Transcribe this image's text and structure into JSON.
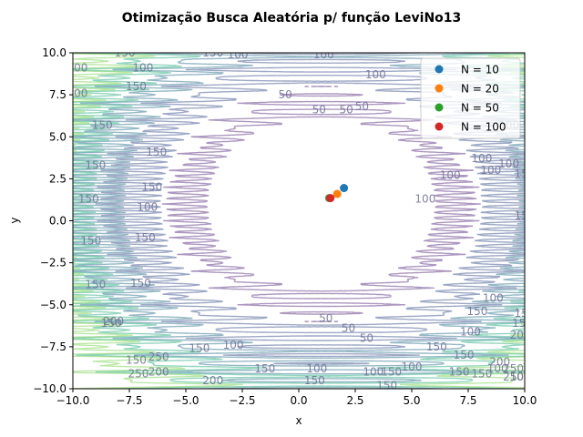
{
  "chart_data": {
    "type": "scatter",
    "title": "Otimização Busca Aleatória p/ função LeviNo13",
    "xlabel": "x",
    "ylabel": "y",
    "xlim": [
      -10,
      10
    ],
    "ylim": [
      -10,
      10
    ],
    "xticks": [
      -10,
      -7.5,
      -5,
      -2.5,
      0,
      2.5,
      5,
      7.5,
      10
    ],
    "yticks": [
      -10,
      -7.5,
      -5,
      -2.5,
      0,
      2.5,
      5,
      7.5,
      10
    ],
    "xtick_labels": [
      "−10.0",
      "−7.5",
      "−5.0",
      "−2.5",
      "0.0",
      "2.5",
      "5.0",
      "7.5",
      "10.0"
    ],
    "ytick_labels": [
      "−10.0",
      "−7.5",
      "−5.0",
      "−2.5",
      "0.0",
      "2.5",
      "5.0",
      "7.5",
      "10.0"
    ],
    "grid": false,
    "legend_position": "top-right",
    "series": [
      {
        "name": "N = 10",
        "color": "#1f77b4",
        "x": [
          2.0
        ],
        "y": [
          1.95
        ]
      },
      {
        "name": "N = 20",
        "color": "#ff7f0e",
        "x": [
          1.7
        ],
        "y": [
          1.6
        ]
      },
      {
        "name": "N = 50",
        "color": "#2ca02c",
        "x": [
          1.35
        ],
        "y": [
          1.35
        ]
      },
      {
        "name": "N = 100",
        "color": "#d62728",
        "x": [
          1.4
        ],
        "y": [
          1.35
        ]
      }
    ],
    "contour": {
      "function": "LeviNo13",
      "levels": [
        50,
        100,
        150,
        200,
        250
      ],
      "colors": [
        "#5a2f7f",
        "#3b528b",
        "#2c728e",
        "#28ae80",
        "#7ad151"
      ],
      "alpha": 0.5,
      "level_labels": [
        {
          "text": "50",
          "x": -0.6,
          "y": 7.5
        },
        {
          "text": "50",
          "x": 0.9,
          "y": 6.6
        },
        {
          "text": "50",
          "x": 2.1,
          "y": 6.6
        },
        {
          "text": "50",
          "x": 2.8,
          "y": 6.8
        },
        {
          "text": "50",
          "x": 2.2,
          "y": -6.4
        },
        {
          "text": "50",
          "x": 1.2,
          "y": -5.8
        },
        {
          "text": "50",
          "x": 3.0,
          "y": -7.0
        },
        {
          "text": "100",
          "x": -2.7,
          "y": 9.9
        },
        {
          "text": "100",
          "x": 1.1,
          "y": 9.9
        },
        {
          "text": "100",
          "x": -6.9,
          "y": 9.1
        },
        {
          "text": "100",
          "x": 3.4,
          "y": 8.7
        },
        {
          "text": "100",
          "x": 8.1,
          "y": 3.7
        },
        {
          "text": "100",
          "x": 8.5,
          "y": 3.0
        },
        {
          "text": "100",
          "x": 9.3,
          "y": 5.7
        },
        {
          "text": "100",
          "x": 9.3,
          "y": 3.4
        },
        {
          "text": "100",
          "x": 6.7,
          "y": 2.7
        },
        {
          "text": "100",
          "x": 5.6,
          "y": 1.3
        },
        {
          "text": "100",
          "x": -6.7,
          "y": 0.8
        },
        {
          "text": "100",
          "x": -2.9,
          "y": -7.4
        },
        {
          "text": "100",
          "x": 0.8,
          "y": -8.8
        },
        {
          "text": "100",
          "x": 3.3,
          "y": -9.0
        },
        {
          "text": "100",
          "x": 8.8,
          "y": -8.8
        },
        {
          "text": "100",
          "x": 9.8,
          "y": -9.3
        },
        {
          "text": "100",
          "x": 5.0,
          "y": -8.7
        },
        {
          "text": "100",
          "x": 7.6,
          "y": -6.6
        },
        {
          "text": "100",
          "x": 8.6,
          "y": -4.6
        },
        {
          "text": "150",
          "x": -7.7,
          "y": 10.0
        },
        {
          "text": "150",
          "x": -3.8,
          "y": 10.0
        },
        {
          "text": "150",
          "x": -7.2,
          "y": 8.0
        },
        {
          "text": "150",
          "x": -8.7,
          "y": 5.7
        },
        {
          "text": "150",
          "x": -9.0,
          "y": 3.3
        },
        {
          "text": "150",
          "x": -9.3,
          "y": 1.3
        },
        {
          "text": "150",
          "x": -6.3,
          "y": 4.1
        },
        {
          "text": "150",
          "x": -6.5,
          "y": 2.0
        },
        {
          "text": "150",
          "x": -6.8,
          "y": -1.0
        },
        {
          "text": "150",
          "x": -7.0,
          "y": -3.7
        },
        {
          "text": "150",
          "x": -9.0,
          "y": -3.8
        },
        {
          "text": "150",
          "x": -9.2,
          "y": -1.2
        },
        {
          "text": "150",
          "x": -8.3,
          "y": -6.1
        },
        {
          "text": "150",
          "x": -7.2,
          "y": -8.3
        },
        {
          "text": "150",
          "x": -1.5,
          "y": -8.8
        },
        {
          "text": "150",
          "x": -4.4,
          "y": -7.6
        },
        {
          "text": "150",
          "x": 0.7,
          "y": -9.5
        },
        {
          "text": "150",
          "x": 8.1,
          "y": -9.1
        },
        {
          "text": "150",
          "x": 7.1,
          "y": -9.0
        },
        {
          "text": "150",
          "x": 10.0,
          "y": -5.5
        },
        {
          "text": "150",
          "x": 9.9,
          "y": -6.1
        },
        {
          "text": "150",
          "x": 10.0,
          "y": 0.3
        },
        {
          "text": "150",
          "x": 10.0,
          "y": 2.8
        },
        {
          "text": "150",
          "x": 7.3,
          "y": -8.0
        },
        {
          "text": "150",
          "x": 6.1,
          "y": -7.5
        },
        {
          "text": "150",
          "x": 4.1,
          "y": -9.0
        },
        {
          "text": "150",
          "x": 3.9,
          "y": -9.8
        },
        {
          "text": "150",
          "x": 7.9,
          "y": -5.4
        },
        {
          "text": "200",
          "x": -9.8,
          "y": 9.1
        },
        {
          "text": "200",
          "x": -8.2,
          "y": -6.0
        },
        {
          "text": "200",
          "x": -6.2,
          "y": -9.0
        },
        {
          "text": "200",
          "x": -3.8,
          "y": -9.5
        },
        {
          "text": "200",
          "x": 9.8,
          "y": -6.8
        },
        {
          "text": "200",
          "x": 8.9,
          "y": -8.4
        },
        {
          "text": "200",
          "x": -9.8,
          "y": 7.6
        },
        {
          "text": "250",
          "x": -6.2,
          "y": -8.1
        },
        {
          "text": "250",
          "x": -7.1,
          "y": -9.1
        },
        {
          "text": "250",
          "x": 9.5,
          "y": -8.8
        },
        {
          "text": "250",
          "x": 9.5,
          "y": -9.3
        }
      ]
    }
  }
}
